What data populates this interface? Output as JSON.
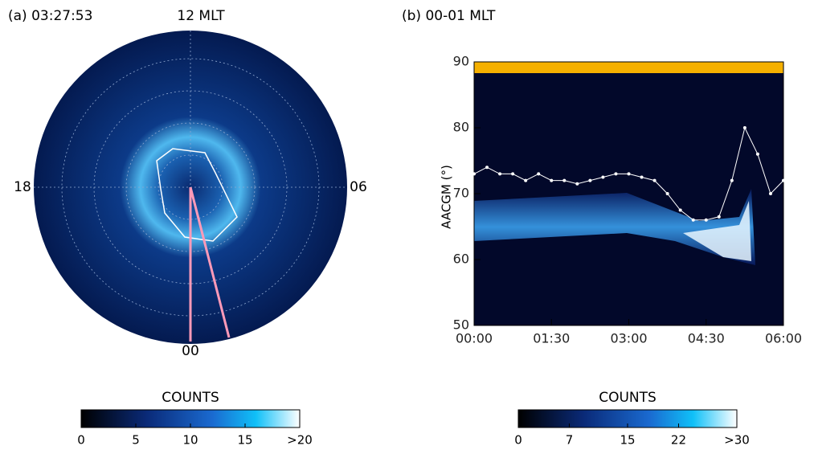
{
  "chart_data": [
    {
      "type": "polar",
      "title": "(a) 03:27:53",
      "labels": {
        "top": "12 MLT",
        "left": "18",
        "right": "06",
        "bottom": "00"
      },
      "colorbar": {
        "title": "COUNTS",
        "lim": [
          0,
          20
        ],
        "ticks": [
          0,
          5,
          10,
          15,
          {
            "value": 20,
            "label": ">20"
          }
        ]
      }
    },
    {
      "type": "line",
      "title": "(b) 00-01 MLT",
      "y_label": "AACGM (°)",
      "ylim": [
        50,
        90
      ],
      "yticks": [
        50,
        60,
        70,
        80,
        90
      ],
      "xlim": [
        0,
        6
      ],
      "xticks": [
        {
          "value": 0,
          "label": "00:00"
        },
        {
          "value": 1.5,
          "label": "01:30"
        },
        {
          "value": 3,
          "label": "03:00"
        },
        {
          "value": 4.5,
          "label": "04:30"
        },
        {
          "value": 6,
          "label": "06:00"
        }
      ],
      "series": [
        {
          "color": "#ffffff",
          "x": [
            0,
            0.25,
            0.5,
            0.75,
            1,
            1.25,
            1.5,
            1.75,
            2,
            2.25,
            2.5,
            2.75,
            3,
            3.25,
            3.5,
            3.75,
            4,
            4.25,
            4.5,
            4.75,
            5,
            5.25,
            5.5,
            5.75,
            6
          ],
          "values": [
            73,
            74,
            73,
            73,
            72,
            73,
            72,
            72,
            71.5,
            72,
            72.5,
            73,
            73,
            72.5,
            72,
            70,
            67.5,
            66,
            66,
            66.5,
            72,
            80,
            76,
            70,
            72
          ]
        }
      ],
      "colorbar": {
        "title": "COUNTS",
        "lim": [
          0,
          30
        ],
        "ticks": [
          0,
          7,
          15,
          22,
          {
            "value": 30,
            "label": ">30"
          }
        ]
      }
    }
  ]
}
